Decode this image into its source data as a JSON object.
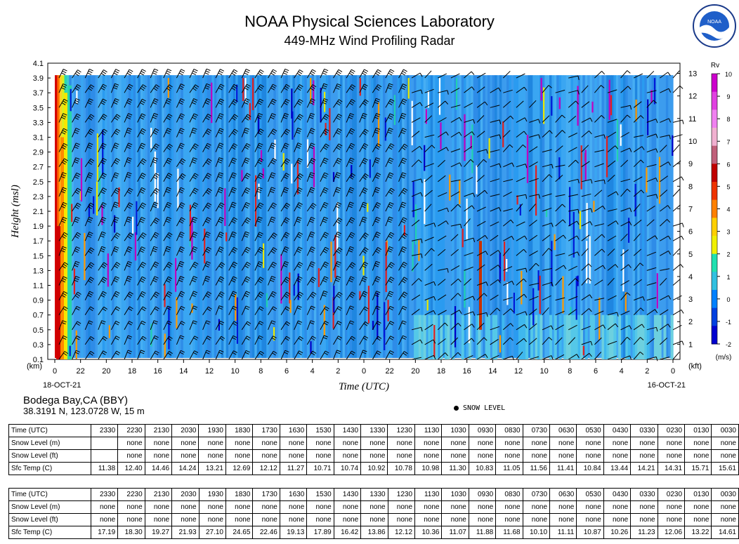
{
  "header": {
    "title": "NOAA Physical Sciences Laboratory",
    "subtitle": "449-MHz Wind Profiling Radar"
  },
  "logo": {
    "text": "NOAA"
  },
  "chart_data": {
    "type": "heatmap",
    "title": "449-MHz Wind Profiling Radar",
    "xlabel": "Time (UTC)",
    "ylabel": "Height (msl)",
    "y_left_unit": "(km)",
    "y_right_unit": "(kft)",
    "x_ticks": [
      "0",
      "22",
      "20",
      "18",
      "16",
      "14",
      "12",
      "10",
      "8",
      "6",
      "4",
      "2",
      "0",
      "22",
      "20",
      "18",
      "16",
      "14",
      "12",
      "10",
      "8",
      "6",
      "4",
      "2",
      "0"
    ],
    "x_start_label": "18-OCT-21",
    "x_end_label": "16-OCT-21",
    "y_left_ticks": [
      "0.1",
      "0.3",
      "0.5",
      "0.7",
      "0.9",
      "1.1",
      "1.3",
      "1.5",
      "1.7",
      "1.9",
      "2.1",
      "2.3",
      "2.5",
      "2.7",
      "2.9",
      "3.1",
      "3.3",
      "3.5",
      "3.7",
      "3.9",
      "4.1"
    ],
    "y_right_ticks": [
      "1",
      "2",
      "3",
      "4",
      "5",
      "6",
      "7",
      "8",
      "9",
      "10",
      "11",
      "12",
      "13"
    ],
    "ylim_km": [
      0.1,
      3.9
    ],
    "colorbar": {
      "label": "Rv",
      "unit": "(m/s)",
      "ticks": [
        "10",
        "9",
        "8",
        "7",
        "6",
        "5",
        "4",
        "3",
        "2",
        "1",
        "0",
        "-1",
        "-2"
      ],
      "colors": [
        "#cc00cc",
        "#e040e0",
        "#f080f0",
        "#f0b0d0",
        "#c0607a",
        "#c00000",
        "#ee3300",
        "#ff8000",
        "#ffd000",
        "#f0f000",
        "#20e0b0",
        "#30c0e0",
        "#0080ff",
        "#0040e0",
        "#0000d0"
      ]
    },
    "dominant_value_ms": -0.5,
    "wind_barbs_note": "barbs shown at each hour/gate"
  },
  "station": {
    "name": "Bodega Bay,CA (BBY)",
    "location": "38.3191 N, 123.0728 W, 15 m"
  },
  "legend": {
    "snow_level": "SNOW LEVEL"
  },
  "tables": [
    {
      "rows": [
        {
          "label": "Time (UTC)",
          "values": [
            "2330",
            "2230",
            "2130",
            "2030",
            "1930",
            "1830",
            "1730",
            "1630",
            "1530",
            "1430",
            "1330",
            "1230",
            "1130",
            "1030",
            "0930",
            "0830",
            "0730",
            "0630",
            "0530",
            "0430",
            "0330",
            "0230",
            "0130",
            "0030"
          ]
        },
        {
          "label": "Snow Level (m)",
          "values": [
            "",
            "none",
            "none",
            "none",
            "none",
            "none",
            "none",
            "none",
            "none",
            "none",
            "none",
            "none",
            "none",
            "none",
            "none",
            "none",
            "none",
            "none",
            "none",
            "none",
            "none",
            "none",
            "none",
            "none"
          ]
        },
        {
          "label": "Snow Level (ft)",
          "values": [
            "",
            "none",
            "none",
            "none",
            "none",
            "none",
            "none",
            "none",
            "none",
            "none",
            "none",
            "none",
            "none",
            "none",
            "none",
            "none",
            "none",
            "none",
            "none",
            "none",
            "none",
            "none",
            "none",
            "none"
          ]
        },
        {
          "label": "Sfc Temp (C)",
          "values": [
            "11.38",
            "12.40",
            "14.46",
            "14.24",
            "13.21",
            "12.69",
            "12.12",
            "11.27",
            "10.71",
            "10.74",
            "10.92",
            "10.78",
            "10.98",
            "11.30",
            "10.83",
            "11.05",
            "11.56",
            "11.41",
            "10.84",
            "13.44",
            "14.21",
            "14.31",
            "15.71",
            "15.61"
          ]
        }
      ]
    },
    {
      "rows": [
        {
          "label": "Time (UTC)",
          "values": [
            "2330",
            "2230",
            "2130",
            "2030",
            "1930",
            "1830",
            "1730",
            "1630",
            "1530",
            "1430",
            "1330",
            "1230",
            "1130",
            "1030",
            "0930",
            "0830",
            "0730",
            "0630",
            "0530",
            "0430",
            "0330",
            "0230",
            "0130",
            "0030"
          ]
        },
        {
          "label": "Snow Level (m)",
          "values": [
            "none",
            "none",
            "none",
            "none",
            "none",
            "none",
            "none",
            "none",
            "none",
            "none",
            "none",
            "none",
            "none",
            "none",
            "none",
            "none",
            "none",
            "none",
            "none",
            "none",
            "none",
            "none",
            "none",
            "none"
          ]
        },
        {
          "label": "Snow Level (ft)",
          "values": [
            "none",
            "none",
            "none",
            "none",
            "none",
            "none",
            "none",
            "none",
            "none",
            "none",
            "none",
            "none",
            "none",
            "none",
            "none",
            "none",
            "none",
            "none",
            "none",
            "none",
            "none",
            "none",
            "none",
            "none"
          ]
        },
        {
          "label": "Sfc Temp (C)",
          "values": [
            "17.19",
            "18.30",
            "19.27",
            "21.93",
            "27.10",
            "24.65",
            "22.46",
            "19.13",
            "17.89",
            "16.42",
            "13.86",
            "12.12",
            "10.36",
            "11.07",
            "11.88",
            "11.68",
            "10.10",
            "11.11",
            "10.87",
            "10.26",
            "11.23",
            "12.06",
            "13.22",
            "14.61"
          ]
        }
      ]
    }
  ]
}
